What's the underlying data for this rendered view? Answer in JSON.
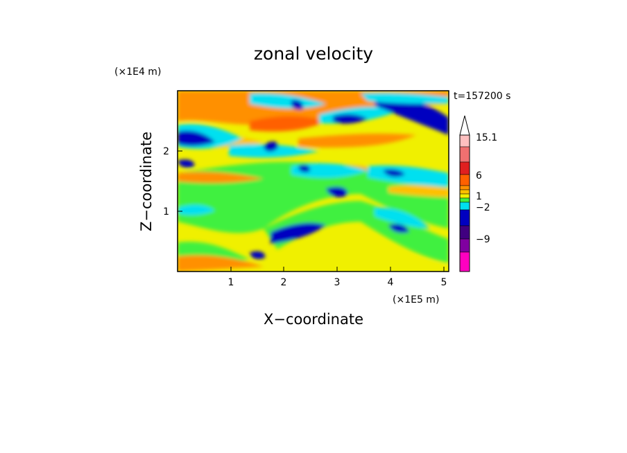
{
  "chart_data": {
    "type": "heatmap",
    "title": "zonal velocity",
    "xlabel": "X−coordinate",
    "ylabel": "Z−coordinate",
    "x_unit": "(×1E5 m)",
    "y_unit": "(×1E4 m)",
    "time_label": "t=157200 s",
    "xlim": [
      0,
      5.12
    ],
    "ylim": [
      0,
      2.95
    ],
    "x_ticks": [
      "1",
      "2",
      "3",
      "4",
      "5"
    ],
    "y_ticks": [
      "1",
      "2"
    ],
    "colorbar": {
      "levels": [
        "15.1",
        "6",
        "1",
        "−2",
        "−9"
      ],
      "colors": [
        "#ffc0c0",
        "#f07070",
        "#e02020",
        "#ff6000",
        "#ff9000",
        "#ffc000",
        "#f0f000",
        "#40f040",
        "#00e0f0",
        "#00a0ff",
        "#0000c0",
        "#400080",
        "#8000a0",
        "#c000c0",
        "#ff00c0"
      ],
      "extend_max": true
    },
    "grid": false
  }
}
